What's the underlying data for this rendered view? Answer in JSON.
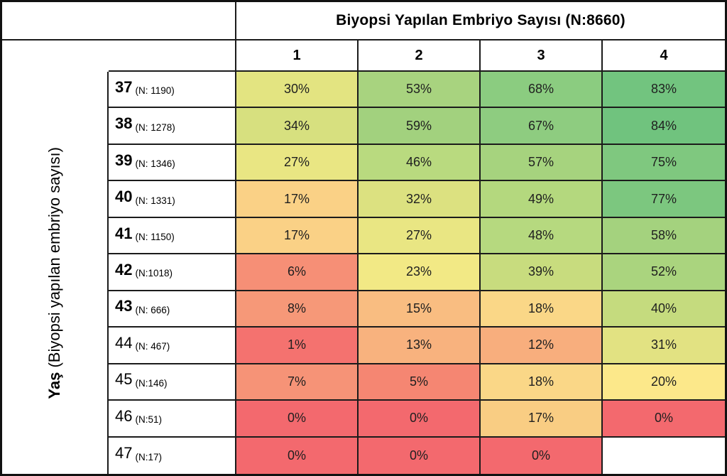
{
  "header": {
    "title": "Biyopsi Yapılan Embriyo Sayısı (N:8660)",
    "columns": [
      "1",
      "2",
      "3",
      "4"
    ]
  },
  "y_axis": {
    "bold_part": "Yaş",
    "rest_part": " (Biyopsi yapılan embriyo sayısı)"
  },
  "rows": [
    {
      "age": "37",
      "n_label": "(N: 1190)",
      "bold": true,
      "cells": [
        {
          "text": "30%",
          "bg": "#e3e481"
        },
        {
          "text": "53%",
          "bg": "#a8d37f"
        },
        {
          "text": "68%",
          "bg": "#8bcc80"
        },
        {
          "text": "83%",
          "bg": "#72c47f"
        }
      ]
    },
    {
      "age": "38",
      "n_label": "(N: 1278)",
      "bold": true,
      "cells": [
        {
          "text": "34%",
          "bg": "#d7e07f"
        },
        {
          "text": "59%",
          "bg": "#a2d17e"
        },
        {
          "text": "67%",
          "bg": "#8ecc80"
        },
        {
          "text": "84%",
          "bg": "#70c37e"
        }
      ]
    },
    {
      "age": "39",
      "n_label": "(N: 1346)",
      "bold": true,
      "cells": [
        {
          "text": "27%",
          "bg": "#e9e683"
        },
        {
          "text": "46%",
          "bg": "#b9da7f"
        },
        {
          "text": "57%",
          "bg": "#a6d37e"
        },
        {
          "text": "75%",
          "bg": "#7fc87f"
        }
      ]
    },
    {
      "age": "40",
      "n_label": "(N: 1331)",
      "bold": true,
      "cells": [
        {
          "text": "17%",
          "bg": "#fad186"
        },
        {
          "text": "32%",
          "bg": "#dce180"
        },
        {
          "text": "49%",
          "bg": "#b4d87e"
        },
        {
          "text": "77%",
          "bg": "#7cc77f"
        }
      ]
    },
    {
      "age": "41",
      "n_label": "(N: 1150)",
      "bold": true,
      "cells": [
        {
          "text": "17%",
          "bg": "#fad186"
        },
        {
          "text": "27%",
          "bg": "#e9e683"
        },
        {
          "text": "48%",
          "bg": "#b6d97f"
        },
        {
          "text": "58%",
          "bg": "#a4d27e"
        }
      ]
    },
    {
      "age": "42",
      "n_label": "(N:1018)",
      "bold": true,
      "cells": [
        {
          "text": "6%",
          "bg": "#f68f76"
        },
        {
          "text": "23%",
          "bg": "#f2e985"
        },
        {
          "text": "39%",
          "bg": "#c8dc7e"
        },
        {
          "text": "52%",
          "bg": "#aad47e"
        }
      ]
    },
    {
      "age": "43",
      "n_label": "(N: 666)",
      "bold": true,
      "cells": [
        {
          "text": "8%",
          "bg": "#f69878"
        },
        {
          "text": "15%",
          "bg": "#f9bd81"
        },
        {
          "text": "18%",
          "bg": "#fad787"
        },
        {
          "text": "40%",
          "bg": "#c5db7e"
        }
      ]
    },
    {
      "age": "44",
      "n_label": "(N: 467)",
      "bold": false,
      "cells": [
        {
          "text": "1%",
          "bg": "#f4726f"
        },
        {
          "text": "13%",
          "bg": "#f8b27e"
        },
        {
          "text": "12%",
          "bg": "#f8ae7d"
        },
        {
          "text": "31%",
          "bg": "#e2e282"
        }
      ]
    },
    {
      "age": "45",
      "n_label": "(N:146)",
      "bold": false,
      "cells": [
        {
          "text": "7%",
          "bg": "#f69377"
        },
        {
          "text": "5%",
          "bg": "#f58672"
        },
        {
          "text": "18%",
          "bg": "#fad787"
        },
        {
          "text": "20%",
          "bg": "#fce88a"
        }
      ]
    },
    {
      "age": "46",
      "n_label": "(N:51)",
      "bold": false,
      "cells": [
        {
          "text": "0%",
          "bg": "#f3696e"
        },
        {
          "text": "0%",
          "bg": "#f3696e"
        },
        {
          "text": "17%",
          "bg": "#f9cd83"
        },
        {
          "text": "0%",
          "bg": "#f3696e"
        }
      ]
    },
    {
      "age": "47",
      "n_label": "(N:17)",
      "bold": false,
      "cells": [
        {
          "text": "0%",
          "bg": "#f3696e"
        },
        {
          "text": "0%",
          "bg": "#f3696e"
        },
        {
          "text": "0%",
          "bg": "#f3696e"
        },
        {
          "text": "",
          "bg": "#ffffff"
        }
      ]
    }
  ],
  "chart_data": {
    "type": "heatmap",
    "title": "Biyopsi Yapılan Embriyo Sayısı (N:8660)",
    "xlabel": "Biyopsi Yapılan Embriyo Sayısı",
    "ylabel": "Yaş (Biyopsi yapılan embriyo sayısı)",
    "x_categories": [
      "1",
      "2",
      "3",
      "4"
    ],
    "y_categories": [
      "37",
      "38",
      "39",
      "40",
      "41",
      "42",
      "43",
      "44",
      "45",
      "46",
      "47"
    ],
    "y_counts": [
      1190,
      1278,
      1346,
      1331,
      1150,
      1018,
      666,
      467,
      146,
      51,
      17
    ],
    "total_n": 8660,
    "values_percent": [
      [
        30,
        53,
        68,
        83
      ],
      [
        34,
        59,
        67,
        84
      ],
      [
        27,
        46,
        57,
        75
      ],
      [
        17,
        32,
        49,
        77
      ],
      [
        17,
        27,
        48,
        58
      ],
      [
        6,
        23,
        39,
        52
      ],
      [
        8,
        15,
        18,
        40
      ],
      [
        1,
        13,
        12,
        31
      ],
      [
        7,
        5,
        18,
        20
      ],
      [
        0,
        0,
        17,
        0
      ],
      [
        0,
        0,
        0,
        null
      ]
    ],
    "colorscale": {
      "low": "#f3696e",
      "mid": "#ffe984",
      "high": "#63be7a"
    },
    "grid": true,
    "legend": "none"
  }
}
